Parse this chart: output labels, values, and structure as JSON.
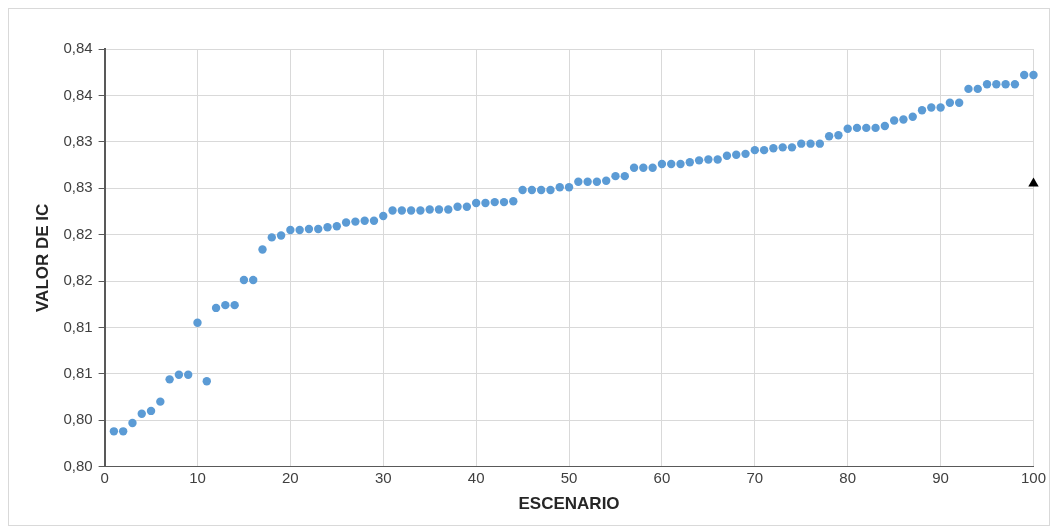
{
  "chart_data": {
    "type": "scatter",
    "xlabel": "ESCENARIO",
    "ylabel": "VALOR DE IC",
    "x": [
      1,
      2,
      3,
      4,
      5,
      6,
      7,
      8,
      9,
      10,
      11,
      12,
      13,
      14,
      15,
      16,
      17,
      18,
      19,
      20,
      21,
      22,
      23,
      24,
      25,
      26,
      27,
      28,
      29,
      30,
      31,
      32,
      33,
      34,
      35,
      36,
      37,
      38,
      39,
      40,
      41,
      42,
      43,
      44,
      45,
      46,
      47,
      48,
      49,
      50,
      51,
      52,
      53,
      54,
      55,
      56,
      57,
      58,
      59,
      60,
      61,
      62,
      63,
      64,
      65,
      66,
      67,
      68,
      69,
      70,
      71,
      72,
      73,
      74,
      75,
      76,
      77,
      78,
      79,
      80,
      81,
      82,
      83,
      84,
      85,
      86,
      87,
      88,
      89,
      90,
      91,
      92,
      93,
      94,
      95,
      96,
      97,
      98,
      99,
      100
    ],
    "series": [
      {
        "color": "#5b9bd5",
        "marker": "circle",
        "values": [
          0.8013,
          0.8013,
          0.8022,
          0.8032,
          0.8035,
          0.8045,
          0.8069,
          0.8074,
          0.8074,
          0.813,
          0.8067,
          0.8146,
          0.8149,
          0.8149,
          0.8176,
          0.8176,
          0.8209,
          0.8222,
          0.8224,
          0.823,
          0.823,
          0.8231,
          0.8231,
          0.8233,
          0.8234,
          0.8238,
          0.8239,
          0.824,
          0.824,
          0.8245,
          0.8251,
          0.8251,
          0.8251,
          0.8251,
          0.8252,
          0.8252,
          0.8252,
          0.8255,
          0.8255,
          0.8259,
          0.8259,
          0.826,
          0.826,
          0.8261,
          0.8273,
          0.8273,
          0.8273,
          0.8273,
          0.8276,
          0.8276,
          0.8282,
          0.8282,
          0.8282,
          0.8283,
          0.8288,
          0.8288,
          0.8297,
          0.8297,
          0.8297,
          0.8301,
          0.8301,
          0.8301,
          0.8303,
          0.8305,
          0.8306,
          0.8306,
          0.831,
          0.8311,
          0.8312,
          0.8316,
          0.8316,
          0.8318,
          0.8319,
          0.8319,
          0.8323,
          0.8323,
          0.8323,
          0.8331,
          0.8332,
          0.8339,
          0.834,
          0.834,
          0.834,
          0.8342,
          0.8348,
          0.8349,
          0.8352,
          0.8359,
          0.8362,
          0.8362,
          0.8367,
          0.8367,
          0.8382,
          0.8382,
          0.8387,
          0.8387,
          0.8387,
          0.8387,
          0.8397,
          0.8397
        ]
      },
      {
        "color": "#000000",
        "marker": "triangle",
        "x": [
          100
        ],
        "values": [
          0.828
        ]
      }
    ],
    "xlim": [
      0,
      100
    ],
    "xticks": [
      0,
      10,
      20,
      30,
      40,
      50,
      60,
      70,
      80,
      90,
      100
    ],
    "ylim": [
      0.7975,
      0.8425
    ],
    "yticks": [
      {
        "value": 0.7975,
        "label": "0,80"
      },
      {
        "value": 0.8025,
        "label": "0,80"
      },
      {
        "value": 0.8075,
        "label": "0,81"
      },
      {
        "value": 0.8125,
        "label": "0,81"
      },
      {
        "value": 0.8175,
        "label": "0,82"
      },
      {
        "value": 0.8225,
        "label": "0,82"
      },
      {
        "value": 0.8275,
        "label": "0,83"
      },
      {
        "value": 0.8325,
        "label": "0,83"
      },
      {
        "value": 0.8375,
        "label": "0,84"
      },
      {
        "value": 0.8425,
        "label": "0,84"
      }
    ],
    "grid": true,
    "legend": false
  }
}
